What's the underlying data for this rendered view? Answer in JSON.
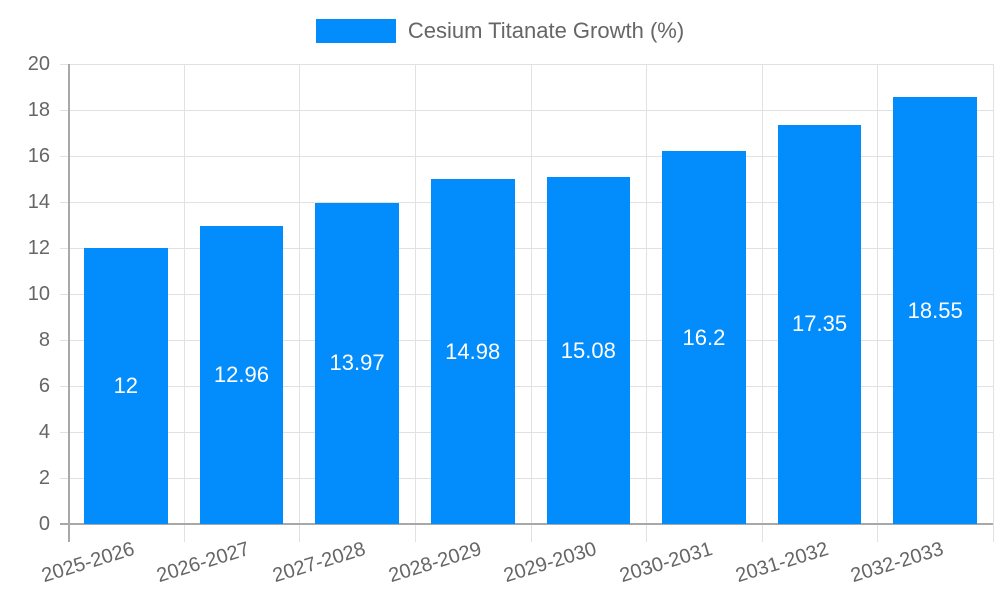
{
  "chart_data": {
    "type": "bar",
    "title": "",
    "legend": [
      {
        "label": "Cesium Titanate Growth (%)",
        "color": "#038cfc"
      }
    ],
    "legend_position": "top",
    "categories": [
      "2025-2026",
      "2026-2027",
      "2027-2028",
      "2028-2029",
      "2029-2030",
      "2030-2031",
      "2031-2032",
      "2032-2033"
    ],
    "series": [
      {
        "name": "Cesium Titanate Growth (%)",
        "values": [
          12,
          12.96,
          13.97,
          14.98,
          15.08,
          16.2,
          17.35,
          18.55
        ],
        "color": "#038cfc"
      }
    ],
    "value_labels": [
      "12",
      "12.96",
      "13.97",
      "14.98",
      "15.08",
      "16.2",
      "17.35",
      "18.55"
    ],
    "xlabel": "",
    "ylabel": "",
    "ylim": [
      0,
      20
    ],
    "yticks": [
      "0",
      "2",
      "4",
      "6",
      "8",
      "10",
      "12",
      "14",
      "16",
      "18",
      "20"
    ],
    "grid": true
  }
}
